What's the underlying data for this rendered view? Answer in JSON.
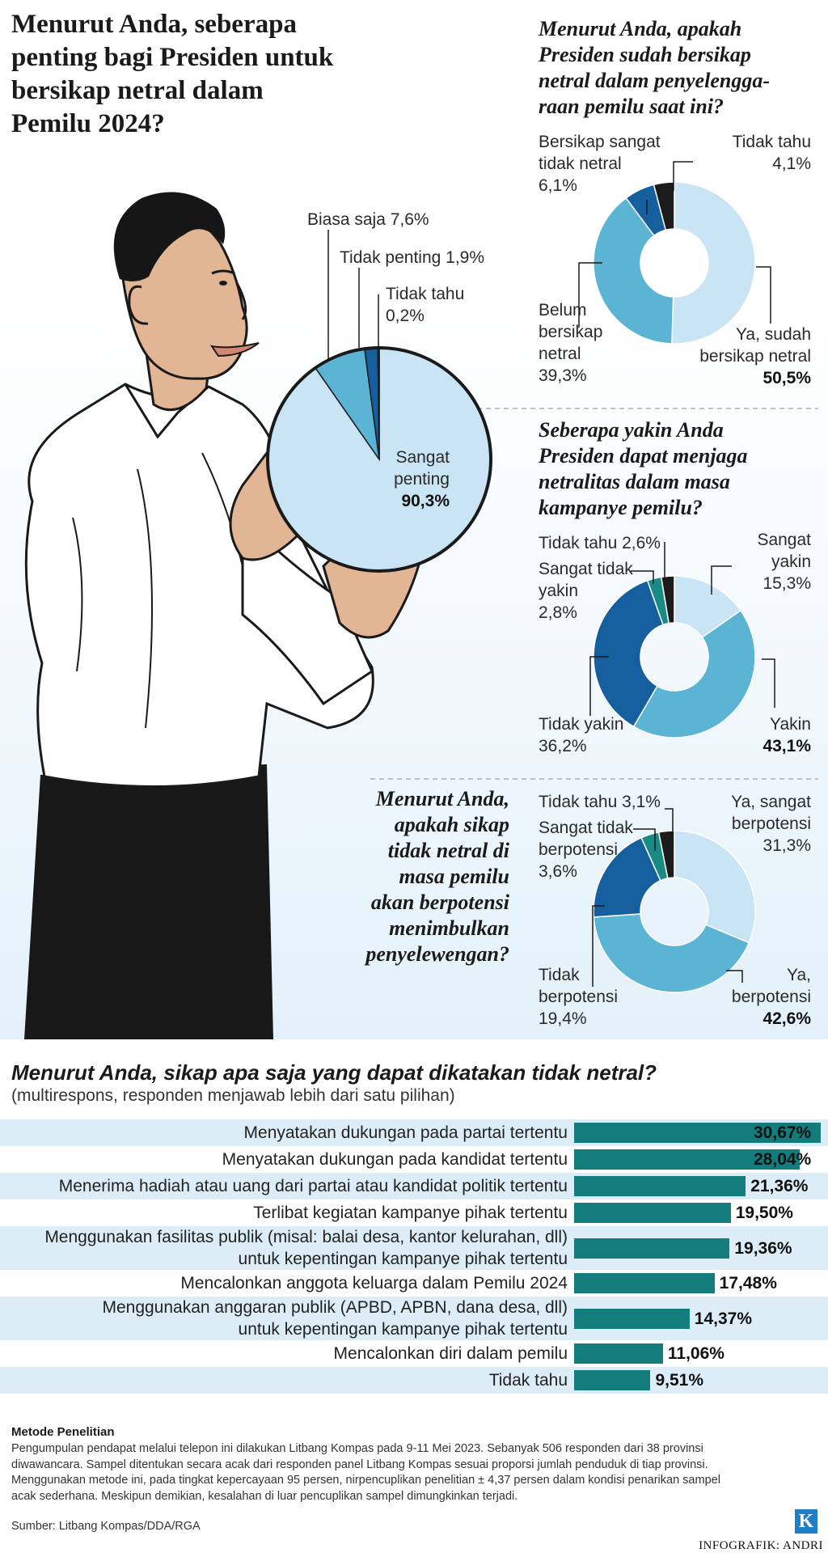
{
  "main_title": "Menurut Anda, seberapa penting bagi Presiden untuk bersikap netral dalam Pemilu 2024?",
  "colors": {
    "very_light": "#c9e4f4",
    "mid": "#5bb4d4",
    "dark_blue": "#155f9e",
    "teal": "#1a8a85",
    "black": "#1b1b1b",
    "bar": "#137c7d",
    "row_shade": "#dcedf7"
  },
  "chart_data": [
    {
      "type": "pie",
      "title": "Menurut Anda, seberapa penting bagi Presiden untuk bersikap netral dalam Pemilu 2024?",
      "slices": [
        {
          "label": "Sangat penting",
          "value": 90.3,
          "value_text": "90,3%"
        },
        {
          "label": "Biasa saja",
          "value": 7.6,
          "value_text": "7,6%"
        },
        {
          "label": "Tidak penting",
          "value": 1.9,
          "value_text": "1,9%"
        },
        {
          "label": "Tidak tahu",
          "value": 0.2,
          "value_text": "0,2%"
        }
      ]
    },
    {
      "type": "pie",
      "title": "Menurut Anda, apakah Presiden sudah bersikap netral dalam penyelenggaraan pemilu saat ini?",
      "slices": [
        {
          "label": "Ya, sudah bersikap netral",
          "value": 50.5,
          "value_text": "50,5%"
        },
        {
          "label": "Belum bersikap netral",
          "value": 39.3,
          "value_text": "39,3%"
        },
        {
          "label": "Bersikap sangat tidak netral",
          "value": 6.1,
          "value_text": "6,1%"
        },
        {
          "label": "Tidak tahu",
          "value": 4.1,
          "value_text": "4,1%"
        }
      ]
    },
    {
      "type": "pie",
      "title": "Seberapa yakin Anda Presiden dapat menjaga netralitas dalam masa kampanye pemilu?",
      "slices": [
        {
          "label": "Sangat yakin",
          "value": 15.3,
          "value_text": "15,3%"
        },
        {
          "label": "Yakin",
          "value": 43.1,
          "value_text": "43,1%"
        },
        {
          "label": "Tidak yakin",
          "value": 36.2,
          "value_text": "36,2%"
        },
        {
          "label": "Sangat tidak yakin",
          "value": 2.8,
          "value_text": "2,8%"
        },
        {
          "label": "Tidak tahu",
          "value": 2.6,
          "value_text": "2,6%"
        }
      ]
    },
    {
      "type": "pie",
      "title": "Menurut Anda, apakah sikap tidak netral di masa pemilu akan berpotensi menimbulkan penyelewengan?",
      "slices": [
        {
          "label": "Ya, sangat berpotensi",
          "value": 31.3,
          "value_text": "31,3%"
        },
        {
          "label": "Ya, berpotensi",
          "value": 42.6,
          "value_text": "42,6%"
        },
        {
          "label": "Tidak berpotensi",
          "value": 19.4,
          "value_text": "19,4%"
        },
        {
          "label": "Sangat tidak berpotensi",
          "value": 3.6,
          "value_text": "3,6%"
        },
        {
          "label": "Tidak tahu",
          "value": 3.1,
          "value_text": "3,1%"
        }
      ]
    },
    {
      "type": "bar",
      "orientation": "horizontal",
      "title": "Menurut Anda, sikap apa saja yang dapat dikatakan tidak netral?",
      "subtitle": "(multirespons, responden menjawab lebih dari satu pilihan)",
      "xlim": [
        0,
        31
      ],
      "categories": [
        [
          "Menyatakan dukungan pada partai tertentu"
        ],
        [
          "Menyatakan dukungan pada kandidat tertentu"
        ],
        [
          "Menerima hadiah atau uang dari partai atau kandidat politik tertentu"
        ],
        [
          "Terlibat kegiatan kampanye pihak tertentu"
        ],
        [
          "Menggunakan fasilitas publik (misal: balai desa, kantor kelurahan, dll)",
          "untuk kepentingan kampanye pihak tertentu"
        ],
        [
          "Mencalonkan anggota keluarga dalam Pemilu 2024"
        ],
        [
          "Menggunakan anggaran publik (APBD, APBN, dana desa, dll)",
          "untuk kepentingan kampanye pihak tertentu"
        ],
        [
          "Mencalonkan diri dalam pemilu"
        ],
        [
          "Tidak tahu"
        ]
      ],
      "values": [
        30.67,
        28.04,
        21.36,
        19.5,
        19.36,
        17.48,
        14.37,
        11.06,
        9.51
      ],
      "value_texts": [
        "30,67%",
        "28,04%",
        "21,36%",
        "19,50%",
        "19,36%",
        "17,48%",
        "14,37%",
        "11,06%",
        "9,51%"
      ]
    }
  ],
  "pie1_labels": {
    "biasa_saja": "Biasa saja  7,6%",
    "tidak_penting": "Tidak penting 1,9%",
    "tidak_tahu_1": "Tidak tahu",
    "tidak_tahu_2": "0,2%",
    "sangat_1": "Sangat",
    "sangat_2": "penting",
    "sangat_3": "90,3%"
  },
  "q2": {
    "title_lines": [
      "Menurut Anda, apakah",
      "Presiden sudah bersikap",
      "netral dalam penyelengga-",
      "raan pemilu saat ini?"
    ],
    "bsn": [
      "Bersikap sangat",
      "tidak netral",
      "6,1%"
    ],
    "tt": [
      "Tidak tahu",
      "4,1%"
    ],
    "belum": [
      "Belum",
      "bersikap",
      "netral",
      "39,3%"
    ],
    "ya": [
      "Ya, sudah",
      "bersikap netral",
      "50,5%"
    ]
  },
  "q3": {
    "title_lines": [
      "Seberapa yakin Anda",
      "Presiden dapat menjaga",
      "netralitas dalam masa",
      "kampanye pemilu?"
    ],
    "tt": "Tidak tahu 2,6%",
    "sty": [
      "Sangat tidak",
      "yakin",
      "2,8%"
    ],
    "sy": [
      "Sangat",
      "yakin",
      "15,3%"
    ],
    "ty": [
      "Tidak yakin",
      "36,2%"
    ],
    "y": [
      "Yakin",
      "43,1%"
    ]
  },
  "q4": {
    "title_lines": [
      "Menurut Anda,",
      "apakah sikap",
      "tidak netral di",
      "masa pemilu",
      "akan berpotensi",
      "menimbulkan",
      "penyelewengan?"
    ],
    "tt": "Tidak tahu 3,1%",
    "stb": [
      "Sangat tidak",
      "berpotensi",
      "3,6%"
    ],
    "ysb": [
      "Ya, sangat",
      "berpotensi",
      "31,3%"
    ],
    "tb": [
      "Tidak",
      "berpotensi",
      "19,4%"
    ],
    "yb": [
      "Ya,",
      "berpotensi",
      "42,6%"
    ]
  },
  "methodology": {
    "title": "Metode Penelitian",
    "lines": [
      "Pengumpulan pendapat melalui telepon ini dilakukan Litbang Kompas pada 9-11 Mei 2023. Sebanyak 506 responden dari 38 provinsi",
      "diwawancara.  Sampel ditentukan secara acak dari responden panel Litbang Kompas sesuai proporsi jumlah penduduk di tiap provinsi.",
      "Menggunakan metode ini, pada tingkat kepercayaan 95 persen, nirpencuplikan penelitian ± 4,37 persen dalam kondisi penarikan sampel",
      "acak sederhana. Meskipun demikian, kesalahan di luar pencuplikan sampel dimungkinkan terjadi."
    ],
    "source": "Sumber: Litbang Kompas/DDA/RGA"
  },
  "logo_text": "K",
  "credit": "INFOGRAFIK: ANDRI"
}
